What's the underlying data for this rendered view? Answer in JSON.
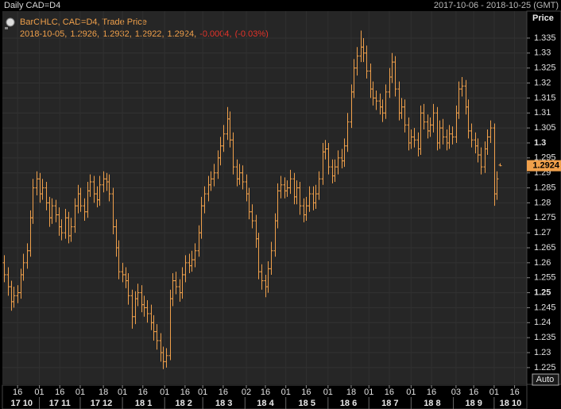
{
  "chart_data": {
    "type": "ohlc",
    "title": "Daily CAD=D4",
    "date_range": "2017-10-06 - 2018-10-25 (GMT)",
    "y_axis_label": "Price",
    "legend": {
      "name": "BarOHLC, CAD=D4, Trade Price",
      "separator": ",",
      "change": -0.0004,
      "change_percent": {
        "value": -0.03,
        "label": "(-0.03%)"
      }
    },
    "auto_button": "Auto",
    "color": "#f0a04b",
    "change_color": "#e5342a",
    "grid": true,
    "xlim": [
      "2017-10-06",
      "2018-10-25"
    ],
    "ylim": [
      1.2194,
      1.344
    ],
    "yticks": [
      1.225,
      1.23,
      1.235,
      1.24,
      1.245,
      1.25,
      1.255,
      1.26,
      1.265,
      1.27,
      1.275,
      1.28,
      1.285,
      1.29,
      1.295,
      1.3,
      1.305,
      1.31,
      1.315,
      1.32,
      1.325,
      1.33,
      1.335
    ],
    "xticks": [
      {
        "value": "2017-10-16",
        "label": "16"
      },
      {
        "value": "2017-11-01",
        "label": "01"
      },
      {
        "value": "2017-11-16",
        "label": "16"
      },
      {
        "value": "2017-12-01",
        "label": "01"
      },
      {
        "value": "2017-12-18",
        "label": "18"
      },
      {
        "value": "2018-01-01",
        "label": "01"
      },
      {
        "value": "2018-01-16",
        "label": "16"
      },
      {
        "value": "2018-02-01",
        "label": "01"
      },
      {
        "value": "2018-02-16",
        "label": "16"
      },
      {
        "value": "2018-03-01",
        "label": "01"
      },
      {
        "value": "2018-03-16",
        "label": "16"
      },
      {
        "value": "2018-04-02",
        "label": "02"
      },
      {
        "value": "2018-04-16",
        "label": "16"
      },
      {
        "value": "2018-05-01",
        "label": "01"
      },
      {
        "value": "2018-05-16",
        "label": "16"
      },
      {
        "value": "2018-06-01",
        "label": "01"
      },
      {
        "value": "2018-06-18",
        "label": "18"
      },
      {
        "value": "2018-07-01",
        "label": "01"
      },
      {
        "value": "2018-07-16",
        "label": "16"
      },
      {
        "value": "2018-08-01",
        "label": "01"
      },
      {
        "value": "2018-08-16",
        "label": "16"
      },
      {
        "value": "2018-09-03",
        "label": "03"
      },
      {
        "value": "2018-09-16",
        "label": "16"
      },
      {
        "value": "2018-10-01",
        "label": "01"
      },
      {
        "value": "2018-10-16",
        "label": "16"
      }
    ],
    "xmonths": [
      {
        "value": "2017-10",
        "label": "17 10"
      },
      {
        "value": "2017-11",
        "label": "17 11"
      },
      {
        "value": "2017-12",
        "label": "17 12"
      },
      {
        "value": "2018-01",
        "label": "18 1"
      },
      {
        "value": "2018-02",
        "label": "18 2"
      },
      {
        "value": "2018-03",
        "label": "18 3"
      },
      {
        "value": "2018-04",
        "label": "18 4"
      },
      {
        "value": "2018-05",
        "label": "18 5"
      },
      {
        "value": "2018-06",
        "label": "18 6"
      },
      {
        "value": "2018-07",
        "label": "18 7"
      },
      {
        "value": "2018-08",
        "label": "18 8"
      },
      {
        "value": "2018-09",
        "label": "18 9"
      },
      {
        "value": "2018-10",
        "label": "18 10"
      }
    ],
    "x": [
      "2017-10-06",
      "2017-10-09",
      "2017-10-11",
      "2017-10-13",
      "2017-10-16",
      "2017-10-18",
      "2017-10-20",
      "2017-10-23",
      "2017-10-25",
      "2017-10-27",
      "2017-10-30",
      "2017-11-01",
      "2017-11-03",
      "2017-11-06",
      "2017-11-08",
      "2017-11-10",
      "2017-11-13",
      "2017-11-15",
      "2017-11-17",
      "2017-11-20",
      "2017-11-22",
      "2017-11-24",
      "2017-11-27",
      "2017-11-29",
      "2017-12-01",
      "2017-12-04",
      "2017-12-06",
      "2017-12-08",
      "2017-12-11",
      "2017-12-13",
      "2017-12-15",
      "2017-12-18",
      "2017-12-20",
      "2017-12-22",
      "2017-12-25",
      "2017-12-27",
      "2017-12-29",
      "2018-01-01",
      "2018-01-03",
      "2018-01-05",
      "2018-01-08",
      "2018-01-10",
      "2018-01-12",
      "2018-01-15",
      "2018-01-17",
      "2018-01-19",
      "2018-01-22",
      "2018-01-24",
      "2018-01-26",
      "2018-01-29",
      "2018-01-31",
      "2018-02-02",
      "2018-02-05",
      "2018-02-07",
      "2018-02-09",
      "2018-02-12",
      "2018-02-14",
      "2018-02-16",
      "2018-02-19",
      "2018-02-21",
      "2018-02-23",
      "2018-02-26",
      "2018-02-28",
      "2018-03-02",
      "2018-03-05",
      "2018-03-07",
      "2018-03-09",
      "2018-03-12",
      "2018-03-14",
      "2018-03-16",
      "2018-03-19",
      "2018-03-21",
      "2018-03-23",
      "2018-03-26",
      "2018-03-28",
      "2018-03-30",
      "2018-04-02",
      "2018-04-04",
      "2018-04-06",
      "2018-04-09",
      "2018-04-11",
      "2018-04-13",
      "2018-04-16",
      "2018-04-18",
      "2018-04-20",
      "2018-04-23",
      "2018-04-25",
      "2018-04-27",
      "2018-04-30",
      "2018-05-02",
      "2018-05-04",
      "2018-05-07",
      "2018-05-09",
      "2018-05-11",
      "2018-05-14",
      "2018-05-16",
      "2018-05-18",
      "2018-05-21",
      "2018-05-23",
      "2018-05-25",
      "2018-05-28",
      "2018-05-30",
      "2018-06-01",
      "2018-06-04",
      "2018-06-06",
      "2018-06-08",
      "2018-06-11",
      "2018-06-13",
      "2018-06-15",
      "2018-06-18",
      "2018-06-20",
      "2018-06-22",
      "2018-06-25",
      "2018-06-27",
      "2018-06-29",
      "2018-07-02",
      "2018-07-04",
      "2018-07-06",
      "2018-07-09",
      "2018-07-11",
      "2018-07-13",
      "2018-07-16",
      "2018-07-18",
      "2018-07-20",
      "2018-07-23",
      "2018-07-25",
      "2018-07-27",
      "2018-07-30",
      "2018-08-01",
      "2018-08-03",
      "2018-08-06",
      "2018-08-08",
      "2018-08-10",
      "2018-08-13",
      "2018-08-15",
      "2018-08-17",
      "2018-08-20",
      "2018-08-22",
      "2018-08-24",
      "2018-08-27",
      "2018-08-29",
      "2018-08-31",
      "2018-09-03",
      "2018-09-05",
      "2018-09-07",
      "2018-09-10",
      "2018-09-12",
      "2018-09-14",
      "2018-09-17",
      "2018-09-19",
      "2018-09-21",
      "2018-09-24",
      "2018-09-26",
      "2018-09-28",
      "2018-10-01",
      "2018-10-03",
      "2018-10-05"
    ],
    "open": [
      1.26,
      1.256,
      1.252,
      1.247,
      1.249,
      1.25,
      1.256,
      1.26,
      1.264,
      1.275,
      1.285,
      1.288,
      1.283,
      1.285,
      1.28,
      1.275,
      1.279,
      1.276,
      1.272,
      1.27,
      1.275,
      1.269,
      1.272,
      1.279,
      1.283,
      1.279,
      1.277,
      1.284,
      1.287,
      1.283,
      1.281,
      1.286,
      1.288,
      1.287,
      1.283,
      1.272,
      1.265,
      1.257,
      1.256,
      1.254,
      1.249,
      1.242,
      1.248,
      1.25,
      1.246,
      1.245,
      1.243,
      1.24,
      1.237,
      1.234,
      1.23,
      1.227,
      1.229,
      1.248,
      1.254,
      1.252,
      1.25,
      1.256,
      1.26,
      1.259,
      1.261,
      1.264,
      1.27,
      1.279,
      1.283,
      1.286,
      1.288,
      1.29,
      1.295,
      1.299,
      1.303,
      1.308,
      1.301,
      1.292,
      1.288,
      1.29,
      1.287,
      1.283,
      1.277,
      1.274,
      1.268,
      1.257,
      1.254,
      1.252,
      1.258,
      1.264,
      1.274,
      1.284,
      1.286,
      1.284,
      1.285,
      1.288,
      1.282,
      1.285,
      1.279,
      1.276,
      1.279,
      1.283,
      1.28,
      1.283,
      1.288,
      1.297,
      1.298,
      1.292,
      1.289,
      1.292,
      1.295,
      1.294,
      1.299,
      1.307,
      1.317,
      1.325,
      1.329,
      1.332,
      1.33,
      1.324,
      1.318,
      1.315,
      1.314,
      1.312,
      1.31,
      1.317,
      1.322,
      1.327,
      1.318,
      1.31,
      1.312,
      1.306,
      1.3,
      1.302,
      1.301,
      1.298,
      1.31,
      1.307,
      1.304,
      1.306,
      1.31,
      1.3,
      1.305,
      1.302,
      1.3,
      1.303,
      1.302,
      1.31,
      1.318,
      1.319,
      1.312,
      1.304,
      1.301,
      1.299,
      1.296,
      1.292,
      1.298,
      1.302,
      1.305,
      1.283,
      1.2926
    ],
    "high": [
      1.2625,
      1.2585,
      1.254,
      1.252,
      1.2525,
      1.258,
      1.263,
      1.2665,
      1.2775,
      1.288,
      1.2905,
      1.29,
      1.288,
      1.287,
      1.282,
      1.2815,
      1.281,
      1.2785,
      1.2745,
      1.278,
      1.277,
      1.275,
      1.2815,
      1.286,
      1.285,
      1.2815,
      1.287,
      1.2895,
      1.289,
      1.2855,
      1.289,
      1.2905,
      1.29,
      1.2895,
      1.285,
      1.2745,
      1.2675,
      1.26,
      1.2585,
      1.2565,
      1.251,
      1.2505,
      1.253,
      1.2525,
      1.249,
      1.2475,
      1.246,
      1.2425,
      1.2395,
      1.2365,
      1.232,
      1.2315,
      1.251,
      1.2565,
      1.257,
      1.2545,
      1.2585,
      1.2625,
      1.263,
      1.264,
      1.2665,
      1.2725,
      1.282,
      1.2855,
      1.289,
      1.2905,
      1.293,
      1.2975,
      1.302,
      1.306,
      1.312,
      1.3105,
      1.3035,
      1.2945,
      1.293,
      1.2925,
      1.2895,
      1.285,
      1.2795,
      1.276,
      1.27,
      1.2595,
      1.256,
      1.2605,
      1.267,
      1.2765,
      1.2865,
      1.289,
      1.2885,
      1.2875,
      1.291,
      1.29,
      1.2875,
      1.287,
      1.2815,
      1.282,
      1.2855,
      1.2855,
      1.286,
      1.2905,
      1.3,
      1.301,
      1.3,
      1.2945,
      1.2945,
      1.2975,
      1.298,
      1.3015,
      1.31,
      1.3195,
      1.328,
      1.332,
      1.3375,
      1.335,
      1.3325,
      1.3265,
      1.3205,
      1.3175,
      1.3165,
      1.3145,
      1.3195,
      1.325,
      1.33,
      1.329,
      1.3205,
      1.315,
      1.3145,
      1.3085,
      1.3045,
      1.305,
      1.3035,
      1.3125,
      1.313,
      1.3095,
      1.3085,
      1.313,
      1.312,
      1.3075,
      1.308,
      1.3045,
      1.306,
      1.3055,
      1.3125,
      1.3205,
      1.322,
      1.321,
      1.3145,
      1.3065,
      1.3035,
      1.3015,
      1.2985,
      1.3005,
      1.3045,
      1.3075,
      1.3065,
      1.2905,
      1.2932
    ],
    "low": [
      1.2535,
      1.249,
      1.244,
      1.245,
      1.2465,
      1.248,
      1.254,
      1.258,
      1.262,
      1.273,
      1.2825,
      1.28,
      1.281,
      1.2775,
      1.272,
      1.273,
      1.2735,
      1.269,
      1.2675,
      1.268,
      1.2665,
      1.267,
      1.27,
      1.2765,
      1.277,
      1.274,
      1.275,
      1.282,
      1.28,
      1.2785,
      1.279,
      1.2835,
      1.284,
      1.2805,
      1.2695,
      1.262,
      1.2545,
      1.2535,
      1.2515,
      1.246,
      1.238,
      1.2395,
      1.2455,
      1.2435,
      1.242,
      1.24,
      1.2375,
      1.234,
      1.231,
      1.227,
      1.2245,
      1.225,
      1.2275,
      1.2455,
      1.2495,
      1.247,
      1.248,
      1.2535,
      1.2565,
      1.257,
      1.2585,
      1.262,
      1.268,
      1.2765,
      1.2805,
      1.284,
      1.2855,
      1.288,
      1.2925,
      1.297,
      1.301,
      1.2985,
      1.2895,
      1.2855,
      1.286,
      1.2845,
      1.2805,
      1.2745,
      1.2715,
      1.265,
      1.2545,
      1.251,
      1.2485,
      1.25,
      1.256,
      1.262,
      1.2715,
      1.2815,
      1.2815,
      1.282,
      1.283,
      1.2795,
      1.2795,
      1.276,
      1.2735,
      1.274,
      1.277,
      1.2775,
      1.278,
      1.281,
      1.286,
      1.2945,
      1.2895,
      1.2865,
      1.287,
      1.2895,
      1.2915,
      1.292,
      1.297,
      1.305,
      1.315,
      1.3225,
      1.327,
      1.327,
      1.3215,
      1.315,
      1.3125,
      1.311,
      1.3095,
      1.307,
      1.308,
      1.315,
      1.32,
      1.3155,
      1.3075,
      1.308,
      1.3035,
      1.2975,
      1.298,
      1.2985,
      1.2955,
      1.296,
      1.3045,
      1.3015,
      1.302,
      1.3035,
      1.2975,
      1.298,
      1.2995,
      1.2975,
      1.298,
      1.2995,
      1.3,
      1.308,
      1.3155,
      1.3095,
      1.3015,
      1.2985,
      1.2965,
      1.2935,
      1.2895,
      1.29,
      1.296,
      1.3,
      1.279,
      1.281,
      1.2922
    ],
    "close": [
      1.256,
      1.252,
      1.247,
      1.249,
      1.25,
      1.256,
      1.26,
      1.264,
      1.275,
      1.285,
      1.288,
      1.283,
      1.285,
      1.28,
      1.275,
      1.279,
      1.276,
      1.272,
      1.27,
      1.275,
      1.269,
      1.272,
      1.279,
      1.283,
      1.279,
      1.277,
      1.284,
      1.287,
      1.283,
      1.281,
      1.286,
      1.288,
      1.287,
      1.283,
      1.272,
      1.265,
      1.257,
      1.256,
      1.254,
      1.249,
      1.242,
      1.248,
      1.25,
      1.246,
      1.245,
      1.243,
      1.24,
      1.237,
      1.234,
      1.23,
      1.227,
      1.229,
      1.248,
      1.254,
      1.252,
      1.25,
      1.256,
      1.26,
      1.259,
      1.261,
      1.264,
      1.27,
      1.279,
      1.283,
      1.286,
      1.288,
      1.29,
      1.295,
      1.299,
      1.303,
      1.308,
      1.301,
      1.292,
      1.288,
      1.29,
      1.287,
      1.283,
      1.277,
      1.274,
      1.268,
      1.257,
      1.254,
      1.252,
      1.258,
      1.264,
      1.274,
      1.284,
      1.286,
      1.284,
      1.285,
      1.288,
      1.282,
      1.285,
      1.279,
      1.276,
      1.279,
      1.283,
      1.28,
      1.283,
      1.288,
      1.297,
      1.298,
      1.292,
      1.289,
      1.292,
      1.295,
      1.294,
      1.299,
      1.307,
      1.317,
      1.325,
      1.329,
      1.332,
      1.33,
      1.324,
      1.318,
      1.315,
      1.314,
      1.312,
      1.31,
      1.317,
      1.322,
      1.327,
      1.318,
      1.31,
      1.312,
      1.306,
      1.3,
      1.302,
      1.301,
      1.298,
      1.31,
      1.307,
      1.304,
      1.306,
      1.31,
      1.3,
      1.305,
      1.302,
      1.3,
      1.303,
      1.302,
      1.31,
      1.318,
      1.319,
      1.312,
      1.304,
      1.301,
      1.299,
      1.296,
      1.292,
      1.298,
      1.302,
      1.305,
      1.283,
      1.288,
      1.2924
    ]
  }
}
